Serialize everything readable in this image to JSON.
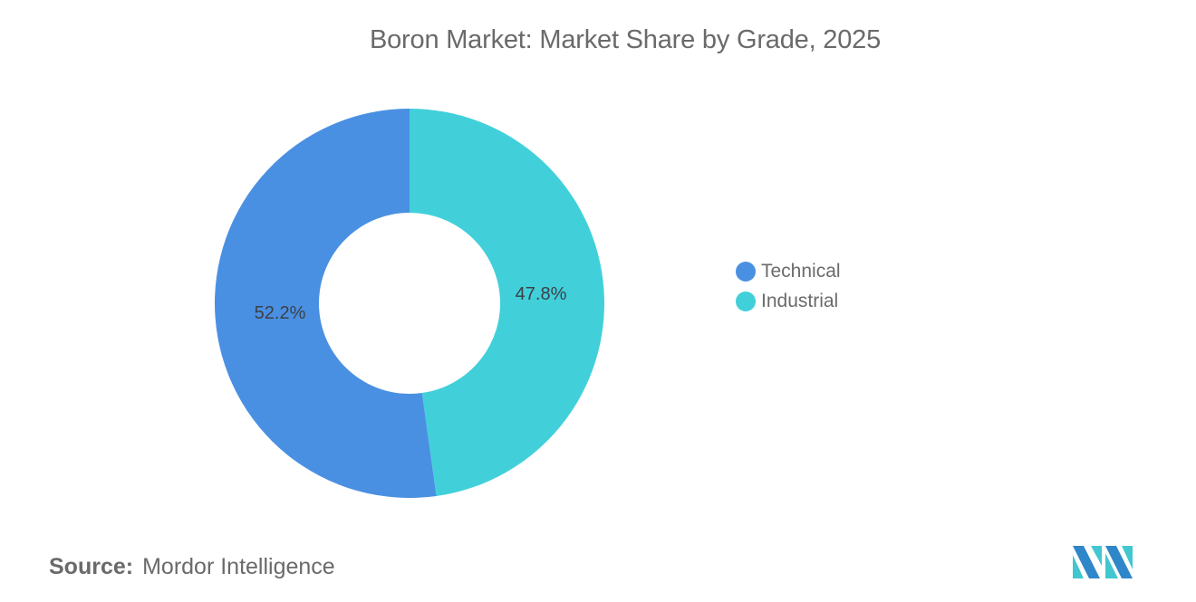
{
  "title": "Boron Market: Market Share by Grade, 2025",
  "chart_data": {
    "type": "pie",
    "subtype": "donut",
    "title": "Boron Market: Market Share by Grade, 2025",
    "categories": [
      "Technical",
      "Industrial"
    ],
    "values": [
      52.2,
      47.8
    ],
    "labels": [
      "52.2%",
      "47.8%"
    ],
    "colors": [
      "#4a90e2",
      "#41d0da"
    ],
    "legend_position": "right",
    "start_angle": "12 o'clock",
    "direction": "clockwise, Industrial first"
  },
  "legend": {
    "items": [
      {
        "label": "Technical",
        "color": "#4a90e2"
      },
      {
        "label": "Industrial",
        "color": "#41d0da"
      }
    ]
  },
  "source": {
    "key": "Source:",
    "value": "Mordor Intelligence"
  },
  "logo": {
    "icon": "mordor-intelligence-logo-icon",
    "colors": [
      "#2f87c9",
      "#41c7d0"
    ]
  }
}
